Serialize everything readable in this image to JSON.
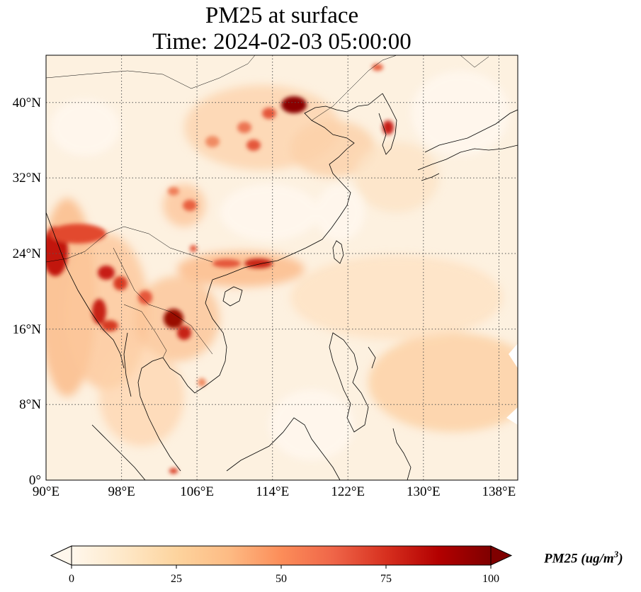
{
  "title_line1": "PM25 at surface",
  "title_line2": "Time: 2024-02-03 05:00:00",
  "map": {
    "projection": "PlateCarree",
    "lon_range": [
      90,
      140
    ],
    "lat_range": [
      0,
      45
    ],
    "gridlines": "dotted",
    "lon_ticks": [
      "90°E",
      "98°E",
      "106°E",
      "114°E",
      "122°E",
      "130°E",
      "138°E"
    ],
    "lat_ticks": [
      "0°",
      "8°N",
      "16°N",
      "24°N",
      "32°N",
      "40°N"
    ],
    "background_color": "#fdf2e4",
    "coastline_color": "#000000"
  },
  "colorbar": {
    "colormap": "OrRd",
    "extend": "both",
    "min": 0,
    "max": 100,
    "ticks": [
      "0",
      "25",
      "50",
      "75",
      "100"
    ],
    "label_text": "PM25 (ug/m",
    "label_sup": "3",
    "label_close": ")",
    "colors": [
      "#fff7ec",
      "#fee8c8",
      "#fdd49e",
      "#fdbb84",
      "#fc8d59",
      "#ef6548",
      "#d7301f",
      "#b30000",
      "#7f0000"
    ]
  }
}
